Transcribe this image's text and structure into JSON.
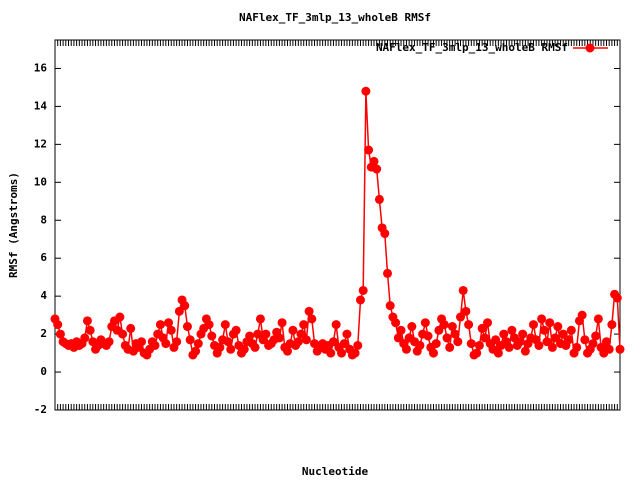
{
  "chart_data": {
    "type": "line",
    "title": "NAFlex_TF_3mlp_13_wholeB RMSf",
    "xlabel": "Nucleotide",
    "ylabel": "RMSf (Angstroms)",
    "categories": [
      null,
      null,
      null,
      null,
      null,
      null,
      null,
      null,
      null,
      null,
      null,
      null,
      null,
      null,
      null,
      null,
      null,
      null,
      null,
      null,
      null,
      null,
      null,
      null,
      null,
      null,
      null,
      null,
      null,
      null,
      null,
      null,
      null,
      null,
      null,
      null,
      null,
      null,
      null,
      null,
      null,
      null,
      null,
      null,
      null,
      null,
      null,
      null,
      null,
      null,
      null,
      null,
      null,
      null,
      null,
      null,
      null,
      null,
      null,
      null,
      null,
      null,
      null,
      null,
      null,
      null,
      null,
      null,
      null,
      null,
      null,
      null,
      null,
      null,
      null,
      null,
      null,
      null,
      null,
      null,
      null,
      null,
      null,
      null,
      null,
      null,
      null,
      null,
      null,
      null,
      null,
      null,
      null,
      null,
      null,
      null,
      null,
      null,
      null,
      null,
      null,
      null,
      null,
      null,
      null,
      null,
      null,
      null,
      null,
      null,
      null,
      null,
      null,
      null,
      null,
      null,
      null,
      null,
      null,
      null,
      null,
      null,
      null,
      null,
      null,
      null,
      null,
      null,
      null,
      null,
      null,
      null,
      null,
      null,
      null,
      null,
      null,
      null,
      null,
      null,
      null,
      null,
      null,
      null,
      null,
      null,
      null,
      null,
      null,
      null,
      null,
      null,
      null,
      null,
      null,
      null,
      null,
      null,
      null,
      null,
      null,
      null,
      null,
      null,
      null,
      null,
      null,
      null,
      null,
      null,
      null,
      null,
      null,
      null,
      null,
      null,
      null,
      null,
      null,
      null,
      null,
      null,
      null,
      null,
      null,
      null,
      null,
      null,
      null,
      null,
      null,
      null,
      null,
      null,
      null,
      null,
      null,
      null,
      null,
      null,
      null,
      null,
      null,
      null,
      null,
      null,
      null,
      null,
      null,
      null
    ],
    "series": [
      {
        "name": "NAFlex_TF_3mlp_13_wholeB RMSf",
        "color": "#ff0000",
        "values": [
          2.8,
          2.5,
          2.0,
          1.6,
          1.5,
          1.4,
          1.5,
          1.3,
          1.6,
          1.4,
          1.5,
          1.8,
          2.7,
          2.2,
          1.6,
          1.2,
          1.4,
          1.7,
          1.5,
          1.4,
          1.6,
          2.4,
          2.7,
          2.2,
          2.9,
          2.0,
          1.4,
          1.2,
          2.3,
          1.1,
          1.5,
          1.3,
          1.6,
          1.0,
          0.9,
          1.2,
          1.6,
          1.4,
          2.0,
          2.5,
          1.8,
          1.5,
          2.6,
          2.2,
          1.3,
          1.6,
          3.2,
          3.8,
          3.5,
          2.4,
          1.7,
          0.9,
          1.1,
          1.5,
          2.0,
          2.3,
          2.8,
          2.5,
          1.9,
          1.4,
          1.0,
          1.3,
          1.7,
          2.5,
          1.6,
          1.2,
          2.0,
          2.2,
          1.4,
          1.0,
          1.2,
          1.6,
          1.9,
          1.5,
          1.3,
          2.0,
          2.8,
          1.7,
          2.0,
          1.4,
          1.5,
          1.7,
          2.1,
          1.8,
          2.6,
          1.3,
          1.1,
          1.5,
          2.2,
          1.4,
          1.6,
          2.0,
          2.5,
          1.7,
          3.2,
          2.8,
          1.5,
          1.1,
          1.3,
          1.5,
          1.2,
          1.4,
          1.0,
          1.6,
          2.5,
          1.3,
          1.0,
          1.5,
          2.0,
          1.2,
          0.9,
          1.0,
          1.4,
          3.8,
          4.3,
          14.8,
          11.7,
          10.8,
          11.1,
          10.7,
          9.1,
          7.6,
          7.3,
          5.2,
          3.5,
          2.9,
          2.6,
          1.8,
          2.2,
          1.5,
          1.2,
          1.8,
          2.4,
          1.6,
          1.1,
          1.4,
          2.0,
          2.6,
          1.9,
          1.3,
          1.0,
          1.5,
          2.2,
          2.8,
          2.5,
          1.8,
          1.3,
          2.4,
          2.0,
          1.6,
          2.9,
          4.3,
          3.2,
          2.5,
          1.5,
          0.9,
          1.0,
          1.4,
          2.3,
          1.8,
          2.6,
          1.5,
          1.2,
          1.7,
          1.0,
          1.4,
          2.0,
          1.6,
          1.3,
          2.2,
          1.8,
          1.4,
          1.6,
          2.0,
          1.1,
          1.5,
          1.8,
          2.5,
          1.7,
          1.4,
          2.8,
          2.2,
          1.6,
          2.6,
          1.3,
          1.8,
          2.4,
          1.5,
          2.0,
          1.4,
          1.7,
          2.2,
          1.0,
          1.3,
          2.7,
          3.0,
          1.7,
          1.0,
          1.2,
          1.5,
          1.9,
          2.8,
          1.3,
          1.0,
          1.6,
          1.2,
          2.5,
          4.1,
          3.9,
          1.2
        ]
      }
    ],
    "ylim": [
      -2,
      17.5
    ],
    "yticks": [
      -2,
      0,
      2,
      4,
      6,
      8,
      10,
      12,
      14,
      16
    ],
    "legend": "top-right",
    "grid": false
  }
}
